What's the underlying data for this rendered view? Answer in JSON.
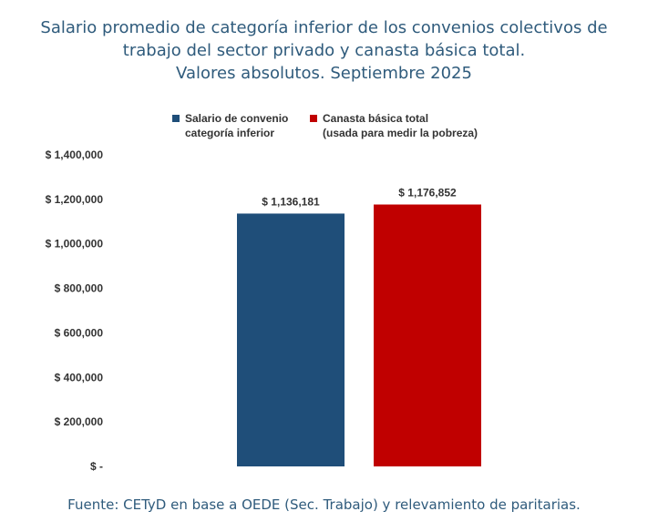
{
  "chart": {
    "title_lines": [
      "Salario promedio de categoría inferior de los convenios colectivos de",
      "trabajo del sector privado y canasta básica total.",
      "Valores absolutos. Septiembre 2025"
    ],
    "legend": [
      {
        "lines": [
          "Salario de convenio",
          "categoría inferior"
        ],
        "color": "#1f4e79"
      },
      {
        "lines": [
          "Canasta básica total",
          "(usada para medir la pobreza)"
        ],
        "color": "#c00000"
      }
    ],
    "source": "Fuente: CETyD en base a OEDE (Sec. Trabajo) y relevamiento de paritarias."
  },
  "chart_data": {
    "type": "bar",
    "categories": [
      "Salario de convenio categoría inferior",
      "Canasta básica total (usada para medir la pobreza)"
    ],
    "values": [
      1136181,
      1176852
    ],
    "data_labels": [
      "$ 1,136,181",
      "$ 1,176,852"
    ],
    "colors": [
      "#1f4e79",
      "#c00000"
    ],
    "ylim": [
      0,
      1400000
    ],
    "yticks": [
      0,
      200000,
      400000,
      600000,
      800000,
      1000000,
      1200000,
      1400000
    ],
    "ytick_labels": [
      "$ -",
      "$ 200,000",
      "$ 400,000",
      "$ 600,000",
      "$ 800,000",
      "$ 1,000,000",
      "$ 1,200,000",
      "$ 1,400,000"
    ],
    "grid": false,
    "legend_position": "top"
  }
}
